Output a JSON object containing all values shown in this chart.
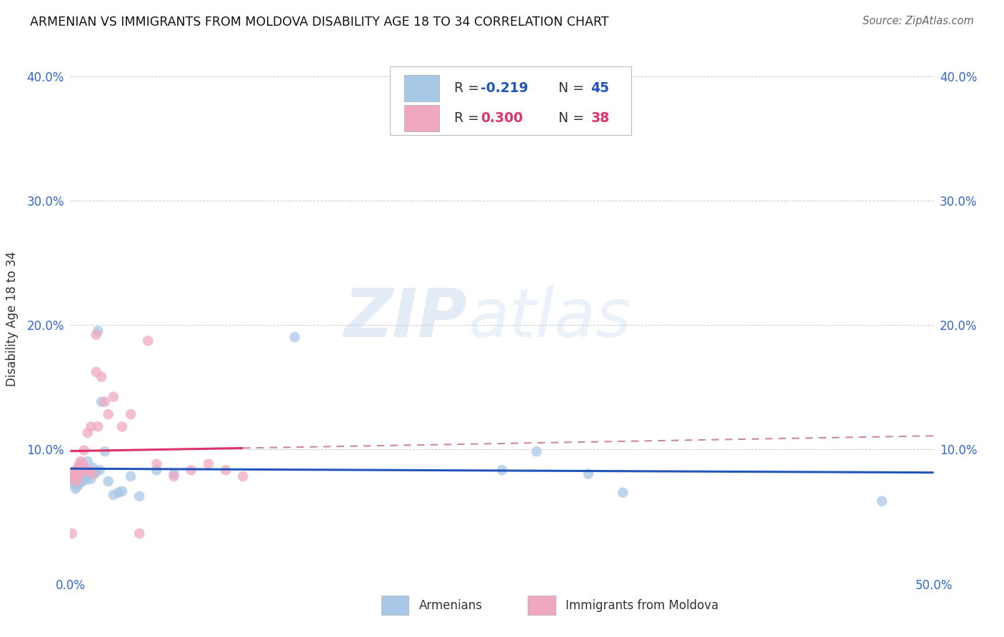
{
  "title": "ARMENIAN VS IMMIGRANTS FROM MOLDOVA DISABILITY AGE 18 TO 34 CORRELATION CHART",
  "source": "Source: ZipAtlas.com",
  "ylabel": "Disability Age 18 to 34",
  "xlim": [
    0.0,
    0.5
  ],
  "ylim": [
    0.0,
    0.41
  ],
  "xticks": [
    0.0,
    0.1,
    0.2,
    0.3,
    0.4,
    0.5
  ],
  "yticks": [
    0.0,
    0.1,
    0.2,
    0.3,
    0.4
  ],
  "xticklabels": [
    "0.0%",
    "",
    "",
    "",
    "",
    "50.0%"
  ],
  "yticklabels": [
    "",
    "10.0%",
    "20.0%",
    "30.0%",
    "40.0%"
  ],
  "right_yticklabels": [
    "",
    "10.0%",
    "20.0%",
    "30.0%",
    "40.0%"
  ],
  "armenian_color": "#a8c8e8",
  "moldovan_color": "#f0a8c0",
  "armenian_line_color": "#2255bb",
  "moldovan_solid_color": "#dd3366",
  "moldovan_dash_color": "#cc8899",
  "watermark_zip": "ZIP",
  "watermark_atlas": "atlas",
  "legend_r1_label": "R = ",
  "legend_r1_val": "-0.219",
  "legend_n1_label": "N = ",
  "legend_n1_val": "45",
  "legend_r2_label": "R = ",
  "legend_r2_val": "0.300",
  "legend_n2_label": "N = ",
  "legend_n2_val": "38",
  "bottom_label1": "Armenians",
  "bottom_label2": "Immigrants from Moldova",
  "armenian_x": [
    0.001,
    0.002,
    0.002,
    0.003,
    0.003,
    0.003,
    0.004,
    0.004,
    0.004,
    0.005,
    0.005,
    0.005,
    0.006,
    0.006,
    0.007,
    0.007,
    0.008,
    0.008,
    0.009,
    0.009,
    0.01,
    0.01,
    0.011,
    0.012,
    0.013,
    0.014,
    0.015,
    0.016,
    0.017,
    0.018,
    0.02,
    0.022,
    0.025,
    0.028,
    0.03,
    0.035,
    0.04,
    0.05,
    0.06,
    0.13,
    0.25,
    0.27,
    0.3,
    0.32,
    0.47
  ],
  "armenian_y": [
    0.075,
    0.08,
    0.072,
    0.078,
    0.073,
    0.068,
    0.08,
    0.076,
    0.07,
    0.085,
    0.078,
    0.072,
    0.083,
    0.076,
    0.086,
    0.074,
    0.083,
    0.077,
    0.081,
    0.075,
    0.09,
    0.082,
    0.079,
    0.076,
    0.085,
    0.08,
    0.082,
    0.195,
    0.083,
    0.138,
    0.098,
    0.074,
    0.063,
    0.065,
    0.066,
    0.078,
    0.062,
    0.083,
    0.08,
    0.19,
    0.083,
    0.098,
    0.08,
    0.065,
    0.058
  ],
  "moldovan_x": [
    0.001,
    0.001,
    0.002,
    0.002,
    0.003,
    0.003,
    0.004,
    0.004,
    0.005,
    0.005,
    0.005,
    0.006,
    0.006,
    0.007,
    0.007,
    0.008,
    0.009,
    0.01,
    0.011,
    0.012,
    0.013,
    0.015,
    0.016,
    0.018,
    0.02,
    0.022,
    0.025,
    0.03,
    0.035,
    0.04,
    0.045,
    0.05,
    0.06,
    0.07,
    0.08,
    0.09,
    0.1,
    0.015
  ],
  "moldovan_y": [
    0.032,
    0.078,
    0.082,
    0.076,
    0.082,
    0.079,
    0.079,
    0.074,
    0.085,
    0.082,
    0.087,
    0.09,
    0.083,
    0.089,
    0.081,
    0.099,
    0.083,
    0.113,
    0.083,
    0.118,
    0.08,
    0.162,
    0.118,
    0.158,
    0.138,
    0.128,
    0.142,
    0.118,
    0.128,
    0.032,
    0.187,
    0.088,
    0.078,
    0.083,
    0.088,
    0.083,
    0.078,
    0.192
  ],
  "background_color": "#ffffff"
}
